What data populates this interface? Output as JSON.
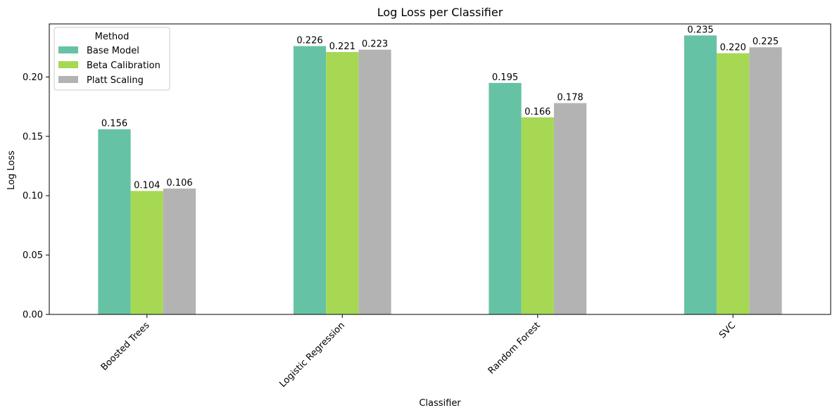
{
  "chart_data": {
    "type": "bar",
    "title": "Log Loss per Classifier",
    "xlabel": "Classifier",
    "ylabel": "Log Loss",
    "categories": [
      "Boosted Trees",
      "Logistic Regression",
      "Random Forest",
      "SVC"
    ],
    "series": [
      {
        "name": "Base Model",
        "color": "#66c2a5",
        "values": [
          0.156,
          0.226,
          0.195,
          0.235
        ],
        "labels": [
          "0.156",
          "0.226",
          "0.195",
          "0.235"
        ]
      },
      {
        "name": "Beta Calibration",
        "color": "#a6d854",
        "values": [
          0.104,
          0.221,
          0.166,
          0.22
        ],
        "labels": [
          "0.104",
          "0.221",
          "0.166",
          "0.220"
        ]
      },
      {
        "name": "Platt Scaling",
        "color": "#b3b3b3",
        "values": [
          0.106,
          0.223,
          0.178,
          0.225
        ],
        "labels": [
          "0.106",
          "0.223",
          "0.178",
          "0.225"
        ]
      }
    ],
    "ylim": [
      0,
      0.2447
    ],
    "yticks": [
      0.0,
      0.05,
      0.1,
      0.15,
      0.2
    ],
    "ytick_labels": [
      "0.00",
      "0.05",
      "0.10",
      "0.15",
      "0.20"
    ],
    "legend": {
      "title": "Method",
      "placement": "upper-left"
    },
    "grid": false,
    "xtick_rotation": 45
  }
}
